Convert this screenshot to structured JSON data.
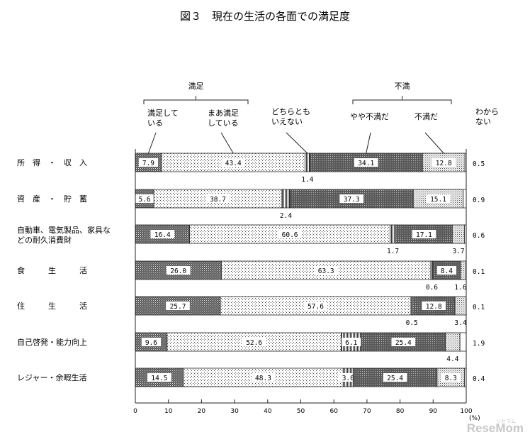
{
  "chart_data": {
    "type": "bar",
    "orientation": "horizontal",
    "stacked": true,
    "title": "図３　現在の生活の各面での満足度",
    "group_labels": [
      "満足",
      "不満"
    ],
    "column_headers": [
      "満足して\nいる",
      "まあ満足\nしている",
      "どちらとも\nいえない",
      "やや不満だ",
      "不満だ",
      "わから\nない"
    ],
    "categories": [
      "所　得　・　収　入",
      "資　産　・　貯　蓄",
      "自動車、電気製品、家具な\nどの耐久消費財",
      "食　　　生　　　活",
      "住　　　生　　　活",
      "自己啓発・能力向上",
      "レジャー・余暇生活"
    ],
    "series": [
      {
        "values": [
          7.9,
          5.6,
          16.4,
          26.0,
          25.7,
          9.6,
          14.5
        ]
      },
      {
        "values": [
          43.4,
          38.7,
          60.6,
          63.3,
          57.6,
          52.6,
          48.3
        ]
      },
      {
        "values": [
          1.4,
          2.4,
          1.7,
          0.6,
          0.5,
          6.1,
          3.0
        ]
      },
      {
        "values": [
          34.1,
          37.3,
          17.1,
          8.4,
          12.8,
          25.4,
          25.4
        ]
      },
      {
        "values": [
          12.8,
          15.1,
          3.7,
          1.6,
          3.4,
          4.4,
          8.3
        ]
      }
    ],
    "dont_know": [
      "0.5",
      "0.9",
      "0.6",
      "0.1",
      "0.1",
      "1.9",
      "0.4"
    ],
    "xlim": [
      0,
      100
    ],
    "xticks": [
      0,
      10,
      20,
      30,
      40,
      50,
      60,
      70,
      80,
      90,
      100
    ],
    "xunit": "(%)",
    "grid": false
  },
  "watermark": {
    "name": "ReseMom",
    "sub": "リセマム"
  }
}
